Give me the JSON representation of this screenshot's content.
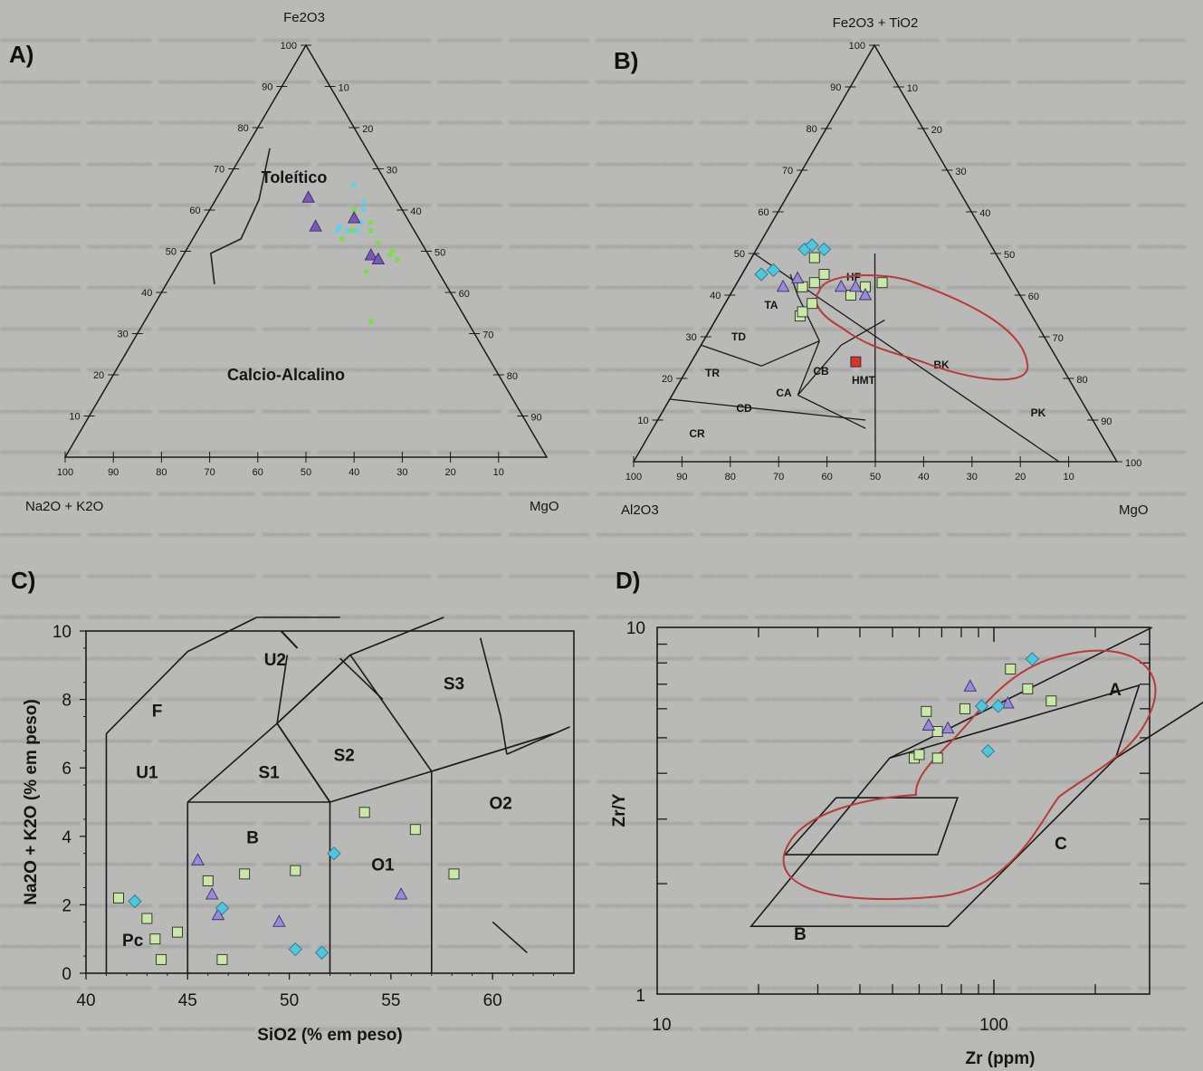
{
  "panels": [
    {
      "letter": "A)"
    },
    {
      "letter": "B)"
    },
    {
      "letter": "C)"
    },
    {
      "letter": "D)"
    }
  ],
  "chart_data": [
    {
      "id": "A",
      "type": "scatter",
      "subtype": "ternary-AFM",
      "apex_labels": {
        "top": "Fe2O3",
        "left": "Na2O + K2O",
        "right": "MgO"
      },
      "tick_values": [
        10,
        20,
        30,
        40,
        50,
        60,
        70,
        80,
        90,
        100
      ],
      "field_labels": [
        "Toleítico",
        "Calcio-Alcalino"
      ],
      "boundary": [
        [
          75,
          20
        ],
        [
          62.5,
          28.5
        ],
        [
          53,
          37
        ],
        [
          49.5,
          45
        ],
        [
          42,
          48
        ]
      ],
      "colors": {
        "cyan": "#5ed3e6",
        "green": "#7cdc4a",
        "purple": "#7a59b4"
      },
      "series": [
        {
          "marker": "cyan-dot",
          "points": [
            [
              16,
              55,
              29
            ],
            [
              15,
              56,
              29
            ],
            [
              14,
              55,
              31
            ],
            [
              10,
              57,
              33
            ],
            [
              12,
              55,
              33
            ],
            [
              9,
              55,
              36
            ],
            [
              8,
              60,
              32
            ],
            [
              7,
              62,
              31
            ],
            [
              7,
              66,
              27
            ]
          ]
        },
        {
          "marker": "green-dot",
          "points": [
            [
              16,
              53,
              31
            ],
            [
              13,
              55,
              32
            ],
            [
              9,
              55,
              36
            ],
            [
              9,
              52,
              39
            ],
            [
              7,
              50,
              43
            ],
            [
              8,
              49,
              43
            ],
            [
              7,
              48,
              45
            ],
            [
              8,
              57,
              35
            ],
            [
              10,
              60,
              30
            ],
            [
              15,
              45,
              40
            ],
            [
              20,
              33,
              47
            ]
          ]
        },
        {
          "marker": "purple-triangle",
          "points": [
            [
              20,
              56,
              24
            ],
            [
              11,
              58,
              31
            ],
            [
              12,
              49,
              39
            ],
            [
              11,
              48,
              41
            ],
            [
              18,
              63,
              19
            ]
          ]
        }
      ]
    },
    {
      "id": "B",
      "type": "scatter",
      "subtype": "ternary-Jensen",
      "apex_labels": {
        "top": "Fe2O3 + TiO2",
        "left": "Al2O3",
        "right": "MgO"
      },
      "tick_values": [
        10,
        20,
        30,
        40,
        50,
        60,
        70,
        80,
        90,
        100
      ],
      "field_labels": [
        "HF",
        "TA",
        "TD",
        "TR",
        "CR",
        "CD",
        "CA",
        "CB",
        "HMT",
        "BK",
        "PK"
      ],
      "colors": {
        "cyan": "#4fc6dc",
        "green": "#c9e8a6",
        "purple": "#9a8ad6",
        "red": "#d8342c",
        "envelope": "#b83a3a"
      },
      "series": [
        {
          "marker": "cyan-diamond",
          "points": [
            [
              51,
              45,
              4
            ],
            [
              48,
              46,
              6
            ],
            [
              39,
              51,
              10
            ],
            [
              37,
              52,
              11
            ],
            [
              35,
              51,
              14
            ]
          ]
        },
        {
          "marker": "green-square",
          "points": [
            [
              48,
              35,
              17
            ],
            [
              47,
              36,
              17
            ],
            [
              44,
              38,
              18
            ],
            [
              41,
              43,
              16
            ],
            [
              38,
              45,
              17
            ],
            [
              35,
              40,
              25
            ],
            [
              31,
              42,
              27
            ],
            [
              27,
              43,
              30
            ],
            [
              44,
              42,
              14
            ],
            [
              38,
              49,
              13
            ]
          ]
        },
        {
          "marker": "purple-triangle",
          "points": [
            [
              48,
              42,
              10
            ],
            [
              36,
              42,
              22
            ],
            [
              33,
              42,
              25
            ],
            [
              32,
              40,
              28
            ],
            [
              44,
              44,
              12
            ]
          ]
        },
        {
          "marker": "red-square",
          "points": [
            [
              42,
              24,
              34
            ]
          ]
        }
      ]
    },
    {
      "id": "C",
      "type": "scatter",
      "subtype": "TAS",
      "xlabel": "SiO2 (% em peso)",
      "ylabel": "Na2O + K2O (% em peso)",
      "xlim": [
        40,
        64
      ],
      "ylim": [
        0,
        10
      ],
      "xticks": [
        40,
        45,
        50,
        55,
        60
      ],
      "yticks": [
        0,
        2,
        4,
        6,
        8,
        10
      ],
      "field_labels": [
        "F",
        "U1",
        "U2",
        "S1",
        "S2",
        "S3",
        "B",
        "O1",
        "O2",
        "Pc"
      ],
      "colors": {
        "cyan": "#4fc6dc",
        "green": "#c9e8a6",
        "purple": "#9a8ad6"
      },
      "series": [
        {
          "marker": "green-square",
          "points": [
            [
              41.6,
              2.2
            ],
            [
              43.0,
              1.6
            ],
            [
              43.4,
              1.0
            ],
            [
              43.7,
              0.4
            ],
            [
              44.5,
              1.2
            ],
            [
              46.0,
              2.7
            ],
            [
              46.7,
              0.4
            ],
            [
              47.8,
              2.9
            ],
            [
              50.3,
              3.0
            ],
            [
              53.7,
              4.7
            ],
            [
              56.2,
              4.2
            ],
            [
              58.1,
              2.9
            ]
          ]
        },
        {
          "marker": "purple-triangle",
          "points": [
            [
              45.5,
              3.3
            ],
            [
              46.2,
              2.3
            ],
            [
              46.5,
              1.7
            ],
            [
              49.5,
              1.5
            ],
            [
              55.5,
              2.3
            ]
          ]
        },
        {
          "marker": "cyan-diamond",
          "points": [
            [
              42.4,
              2.1
            ],
            [
              46.7,
              1.9
            ],
            [
              50.3,
              0.7
            ],
            [
              51.6,
              0.6
            ],
            [
              52.2,
              3.5
            ]
          ]
        }
      ]
    },
    {
      "id": "D",
      "type": "scatter",
      "subtype": "log-log discrimination",
      "xlabel": "Zr (ppm)",
      "ylabel": "Zr/Y",
      "xscale": "log",
      "yscale": "log",
      "xlim": [
        10,
        1000
      ],
      "ylim": [
        1,
        10
      ],
      "xtick_labels": [
        "10",
        "100"
      ],
      "ytick_labels": [
        "1",
        "10"
      ],
      "field_labels": [
        "A",
        "B",
        "C"
      ],
      "colors": {
        "cyan": "#4fc6dc",
        "green": "#c9e8a6",
        "purple": "#9a8ad6",
        "envelope": "#b83a3a"
      },
      "series": [
        {
          "marker": "green-square",
          "points": [
            [
              58,
              4.4
            ],
            [
              60,
              4.5
            ],
            [
              63,
              5.9
            ],
            [
              68,
              5.2
            ],
            [
              68,
              4.4
            ],
            [
              82,
              6.0
            ],
            [
              112,
              7.7
            ],
            [
              126,
              6.8
            ],
            [
              148,
              6.3
            ]
          ]
        },
        {
          "marker": "purple-triangle",
          "points": [
            [
              64,
              5.4
            ],
            [
              73,
              5.3
            ],
            [
              85,
              6.9
            ],
            [
              110,
              6.2
            ]
          ]
        },
        {
          "marker": "cyan-diamond",
          "points": [
            [
              92,
              6.1
            ],
            [
              96,
              4.6
            ],
            [
              103,
              6.1
            ],
            [
              130,
              8.2
            ]
          ]
        }
      ]
    }
  ]
}
